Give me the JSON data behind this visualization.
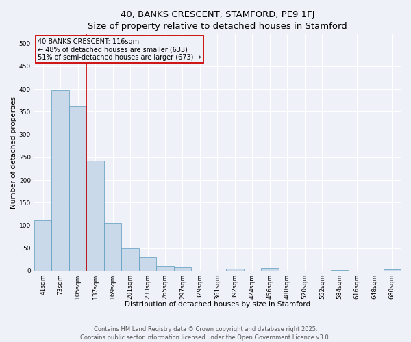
{
  "title_line1": "40, BANKS CRESCENT, STAMFORD, PE9 1FJ",
  "title_line2": "Size of property relative to detached houses in Stamford",
  "xlabel": "Distribution of detached houses by size in Stamford",
  "ylabel": "Number of detached properties",
  "categories": [
    "41sqm",
    "73sqm",
    "105sqm",
    "137sqm",
    "169sqm",
    "201sqm",
    "233sqm",
    "265sqm",
    "297sqm",
    "329sqm",
    "361sqm",
    "392sqm",
    "424sqm",
    "456sqm",
    "488sqm",
    "520sqm",
    "552sqm",
    "584sqm",
    "616sqm",
    "648sqm",
    "680sqm"
  ],
  "values": [
    112,
    397,
    362,
    242,
    105,
    50,
    30,
    10,
    7,
    0,
    0,
    5,
    0,
    6,
    0,
    0,
    0,
    1,
    0,
    0,
    3
  ],
  "bar_color": "#c9d9ea",
  "bar_edge_color": "#5a9abf",
  "vline_x_index": 2,
  "vline_color": "#cc0000",
  "vline_linewidth": 1.2,
  "annotation_line1": "40 BANKS CRESCENT: 116sqm",
  "annotation_line2": "← 48% of detached houses are smaller (633)",
  "annotation_line3": "51% of semi-detached houses are larger (673) →",
  "annotation_box_edge_color": "#cc0000",
  "annotation_text_fontsize": 7,
  "ylim": [
    0,
    520
  ],
  "yticks": [
    0,
    50,
    100,
    150,
    200,
    250,
    300,
    350,
    400,
    450,
    500
  ],
  "background_color": "#eef2f8",
  "grid_color": "#ffffff",
  "footer_line1": "Contains HM Land Registry data © Crown copyright and database right 2025.",
  "footer_line2": "Contains public sector information licensed under the Open Government Licence v3.0.",
  "title_fontsize": 9.5,
  "subtitle_fontsize": 8.5,
  "axis_label_fontsize": 7.5,
  "tick_fontsize": 6.5,
  "footer_fontsize": 6
}
